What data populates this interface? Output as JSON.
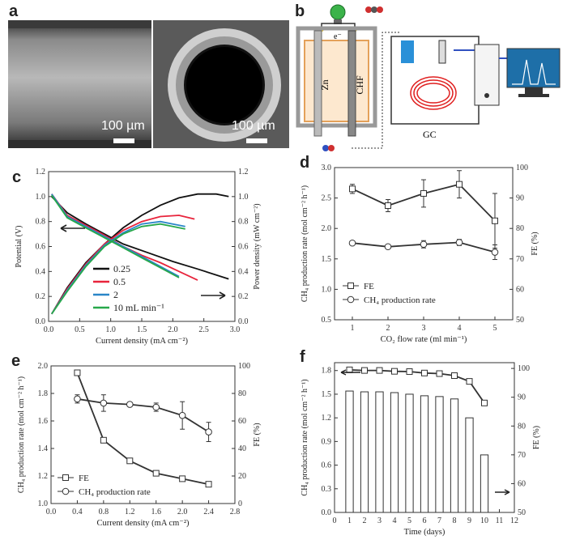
{
  "panels": {
    "a": {
      "letter": "a",
      "scalebars": [
        "100 µm",
        "100 µm"
      ]
    },
    "b": {
      "letter": "b",
      "electron_label": "e⁻",
      "anode_label": "Zn",
      "cathode_label": "CHF",
      "gc_label": "GC"
    }
  },
  "chart_data": [
    {
      "id": "c",
      "letter": "c",
      "type": "line",
      "xlabel": "Current density (mA cm⁻²)",
      "ylabel_left": "Potential (V)",
      "ylabel_right": "Power density (mW cm⁻²)",
      "xlim": [
        0,
        3.0
      ],
      "ylim_left": [
        0,
        1.2
      ],
      "ylim_right": [
        0,
        1.2
      ],
      "x_ticks": [
        "0.0",
        "0.5",
        "1.0",
        "1.5",
        "2.0",
        "2.5",
        "3.0"
      ],
      "y_ticks_left": [
        "0.0",
        "0.2",
        "0.4",
        "0.6",
        "0.8",
        "1.0",
        "1.2"
      ],
      "y_ticks_right": [
        "0.0",
        "0.2",
        "0.4",
        "0.6",
        "0.8",
        "1.0",
        "1.2"
      ],
      "legend": [
        "0.25",
        "0.5",
        "2",
        "10 mL min⁻¹"
      ],
      "series": [
        {
          "name": "0.25",
          "color": "#111111",
          "potential": {
            "x": [
              0.05,
              0.3,
              0.6,
              0.9,
              1.2,
              1.6,
              2.0,
              2.4,
              2.9
            ],
            "y": [
              1.0,
              0.87,
              0.78,
              0.7,
              0.62,
              0.55,
              0.48,
              0.42,
              0.34
            ]
          },
          "power": {
            "x": [
              0.05,
              0.3,
              0.6,
              0.9,
              1.2,
              1.5,
              1.8,
              2.1,
              2.4,
              2.7,
              2.9
            ],
            "y": [
              0.06,
              0.27,
              0.47,
              0.62,
              0.75,
              0.85,
              0.93,
              0.99,
              1.02,
              1.02,
              1.0
            ]
          }
        },
        {
          "name": "0.5",
          "color": "#e8243c",
          "potential": {
            "x": [
              0.05,
              0.3,
              0.6,
              0.9,
              1.2,
              1.5,
              1.8,
              2.1,
              2.4
            ],
            "y": [
              1.02,
              0.85,
              0.77,
              0.69,
              0.6,
              0.53,
              0.47,
              0.4,
              0.33
            ]
          },
          "power": {
            "x": [
              0.05,
              0.3,
              0.6,
              0.9,
              1.2,
              1.5,
              1.8,
              2.1,
              2.35
            ],
            "y": [
              0.06,
              0.26,
              0.46,
              0.62,
              0.73,
              0.8,
              0.84,
              0.85,
              0.82
            ]
          }
        },
        {
          "name": "2",
          "color": "#2a86c8",
          "potential": {
            "x": [
              0.05,
              0.3,
              0.6,
              0.9,
              1.2,
              1.5,
              1.8,
              2.1
            ],
            "y": [
              1.02,
              0.84,
              0.76,
              0.68,
              0.6,
              0.52,
              0.44,
              0.36
            ]
          },
          "power": {
            "x": [
              0.05,
              0.3,
              0.6,
              0.9,
              1.2,
              1.5,
              1.8,
              2.0,
              2.2
            ],
            "y": [
              0.06,
              0.25,
              0.45,
              0.61,
              0.71,
              0.78,
              0.8,
              0.78,
              0.76
            ]
          }
        },
        {
          "name": "10 mL min⁻¹",
          "color": "#27a84a",
          "potential": {
            "x": [
              0.05,
              0.3,
              0.6,
              0.9,
              1.2,
              1.5,
              1.8,
              2.1
            ],
            "y": [
              1.01,
              0.83,
              0.75,
              0.67,
              0.59,
              0.51,
              0.43,
              0.35
            ]
          },
          "power": {
            "x": [
              0.05,
              0.3,
              0.6,
              0.9,
              1.2,
              1.5,
              1.8,
              2.0,
              2.2
            ],
            "y": [
              0.06,
              0.24,
              0.44,
              0.6,
              0.7,
              0.76,
              0.78,
              0.76,
              0.74
            ]
          }
        }
      ]
    },
    {
      "id": "d",
      "letter": "d",
      "type": "scatter",
      "xlabel": "CO₂ flow rate (ml min⁻¹)",
      "ylabel_left": "CH₄ production rate (mol cm⁻² h⁻¹)",
      "ylabel_right": "FE (%)",
      "xlim": [
        0.5,
        5.5
      ],
      "ylim_left": [
        0.5,
        3.0
      ],
      "ylim_right": [
        50,
        100
      ],
      "x_ticks": [
        "1",
        "2",
        "3",
        "4",
        "5"
      ],
      "y_ticks_left": [
        "0.5",
        "1.0",
        "1.5",
        "2.0",
        "2.5",
        "3.0"
      ],
      "y_ticks_right": [
        "50",
        "60",
        "70",
        "80",
        "90",
        "100"
      ],
      "legend": [
        "FE",
        "CH₄ production rate"
      ],
      "series": [
        {
          "name": "FE",
          "marker": "square",
          "axis": "right",
          "x": [
            1,
            2,
            3,
            4,
            5
          ],
          "y": [
            93,
            87.5,
            91.5,
            94.5,
            82.5
          ],
          "err": [
            1.5,
            2.0,
            4.5,
            4.5,
            9.0
          ]
        },
        {
          "name": "CH₄ production rate",
          "marker": "circle",
          "axis": "left",
          "x": [
            1,
            2,
            3,
            4,
            5
          ],
          "y": [
            1.76,
            1.7,
            1.74,
            1.77,
            1.61
          ],
          "err": [
            0.03,
            0.03,
            0.06,
            0.05,
            0.12
          ]
        }
      ]
    },
    {
      "id": "e",
      "letter": "e",
      "type": "scatter",
      "xlabel": "Current density (mA cm⁻²)",
      "ylabel_left": "CH₄ production rate (mol cm⁻² h⁻¹)",
      "ylabel_right": "FE (%)",
      "xlim": [
        0.0,
        2.8
      ],
      "ylim_left": [
        1.0,
        2.0
      ],
      "ylim_right": [
        0,
        100
      ],
      "x_ticks": [
        "0.0",
        "0.4",
        "0.8",
        "1.2",
        "1.6",
        "2.0",
        "2.4",
        "2.8"
      ],
      "y_ticks_left": [
        "1.0",
        "1.2",
        "1.4",
        "1.6",
        "1.8",
        "2.0"
      ],
      "y_ticks_right": [
        "0",
        "20",
        "40",
        "60",
        "80",
        "100"
      ],
      "legend": [
        "FE",
        "CH₄ production rate"
      ],
      "series": [
        {
          "name": "FE",
          "marker": "square",
          "axis": "right",
          "x": [
            0.4,
            0.8,
            1.2,
            1.6,
            2.0,
            2.4
          ],
          "y": [
            95,
            46,
            31,
            22,
            18,
            14
          ],
          "err": [
            0,
            0,
            0,
            0,
            0,
            0
          ]
        },
        {
          "name": "CH₄ production rate",
          "marker": "circle",
          "axis": "left",
          "x": [
            0.4,
            0.8,
            1.2,
            1.6,
            2.0,
            2.4
          ],
          "y": [
            1.76,
            1.73,
            1.72,
            1.7,
            1.64,
            1.52
          ],
          "err": [
            0.03,
            0.06,
            0.01,
            0.03,
            0.1,
            0.07
          ]
        }
      ]
    },
    {
      "id": "f",
      "letter": "f",
      "type": "bar",
      "xlabel": "Time (days)",
      "ylabel_left": "CH₄ production rate (mol cm⁻² h⁻¹)",
      "ylabel_right": "FE (%)",
      "xlim": [
        0,
        12
      ],
      "ylim_left": [
        0,
        1.9
      ],
      "ylim_right": [
        50,
        102
      ],
      "x_ticks": [
        "0",
        "1",
        "2",
        "3",
        "4",
        "5",
        "6",
        "7",
        "8",
        "9",
        "10",
        "11",
        "12"
      ],
      "y_ticks_left": [
        "0.0",
        "0.3",
        "0.6",
        "0.9",
        "1.2",
        "1.5",
        "1.8"
      ],
      "y_ticks_right": [
        "50",
        "60",
        "70",
        "80",
        "90",
        "100"
      ],
      "categories": [
        1,
        2,
        3,
        4,
        5,
        6,
        7,
        8,
        9,
        10
      ],
      "values": [
        1.54,
        1.53,
        1.53,
        1.52,
        1.5,
        1.48,
        1.47,
        1.44,
        1.2,
        0.73
      ],
      "fe_series": {
        "name": "FE",
        "axis": "right",
        "x": [
          1,
          2,
          3,
          4,
          5,
          6,
          7,
          8,
          9,
          10
        ],
        "y": [
          99.5,
          99.3,
          99.3,
          99.0,
          98.9,
          98.4,
          98.2,
          97.5,
          95.5,
          88
        ]
      }
    }
  ]
}
